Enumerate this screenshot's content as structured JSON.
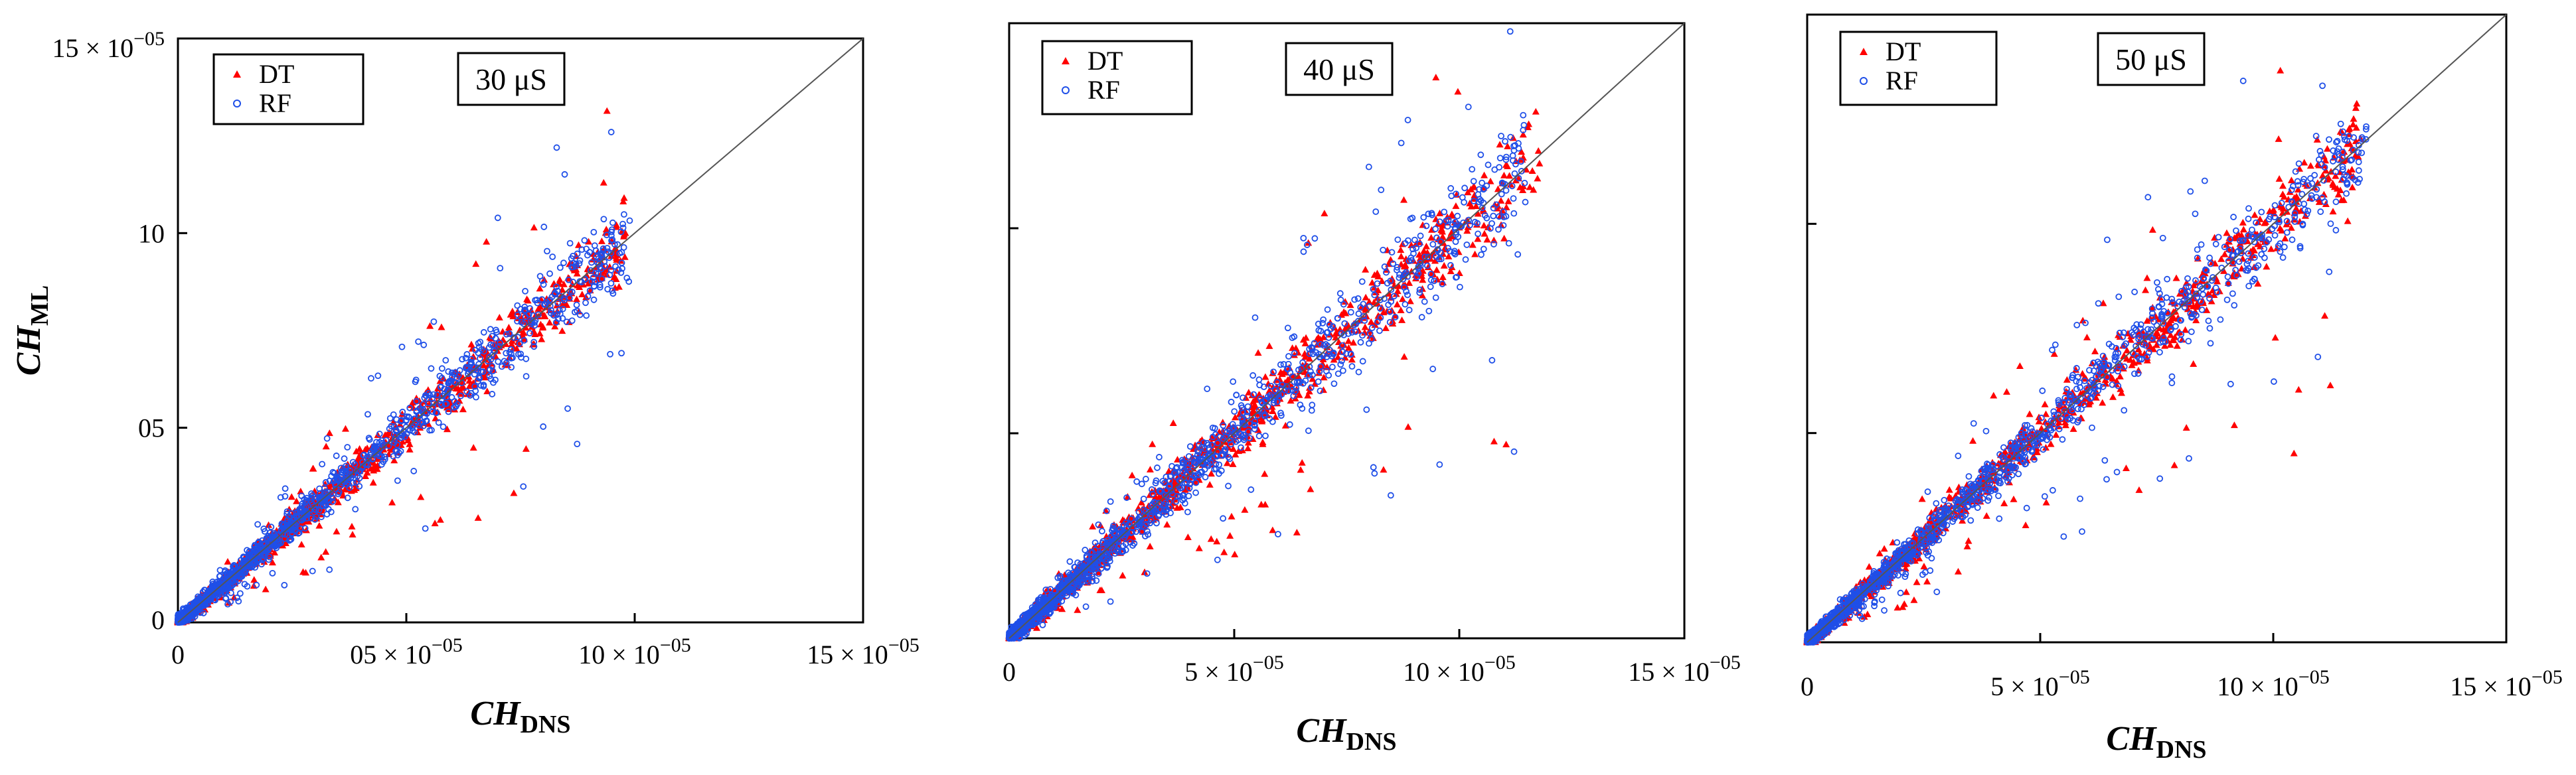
{
  "colors": {
    "DT": "#ff0000",
    "RF": "#1f4fe8",
    "axis": "#000000",
    "diagonal": "#555555"
  },
  "chart_data": [
    {
      "type": "scatter",
      "condition": "30 μS",
      "x_range": [
        0,
        15
      ],
      "y_range": [
        0,
        15
      ],
      "x_ticks": [
        {
          "v": 0,
          "label": "0"
        },
        {
          "v": 5,
          "label": "05 × 10",
          "exp": "−05"
        },
        {
          "v": 10,
          "label": "10 × 10",
          "exp": "−05"
        },
        {
          "v": 15,
          "label": "15 × 10",
          "exp": "−05"
        }
      ],
      "y_ticks": [
        {
          "v": 0,
          "label": "0"
        },
        {
          "v": 5,
          "label": "05"
        },
        {
          "v": 10,
          "label": "10"
        },
        {
          "v": 15,
          "label": "15 × 10",
          "exp": "−05"
        }
      ],
      "xlabel": {
        "main": "CH",
        "sub": "DNS"
      },
      "ylabel": {
        "main": "CH",
        "sub": "ML"
      },
      "legend": [
        "DT",
        "RF"
      ],
      "series": [
        {
          "name": "DT",
          "marker": "triangle",
          "n": 1300,
          "xmax": 9.8,
          "spread": 0.22
        },
        {
          "name": "RF",
          "marker": "circle",
          "n": 1300,
          "xmax": 9.9,
          "spread": 0.26
        }
      ],
      "diagonal": true
    },
    {
      "type": "scatter",
      "condition": "40 μS",
      "x_range": [
        0,
        15
      ],
      "y_range": [
        0,
        15
      ],
      "x_ticks": [
        {
          "v": 0,
          "label": "0"
        },
        {
          "v": 5,
          "label": "5 × 10",
          "exp": "−05"
        },
        {
          "v": 10,
          "label": "10 × 10",
          "exp": "−05"
        },
        {
          "v": 15,
          "label": "15 × 10",
          "exp": "−05"
        }
      ],
      "y_ticks": [
        {
          "v": 5
        },
        {
          "v": 10
        }
      ],
      "xlabel": {
        "main": "CH",
        "sub": "DNS"
      },
      "legend": [
        "DT",
        "RF"
      ],
      "series": [
        {
          "name": "DT",
          "marker": "triangle",
          "n": 1300,
          "xmax": 11.8,
          "spread": 0.25
        },
        {
          "name": "RF",
          "marker": "circle",
          "n": 1300,
          "xmax": 11.5,
          "spread": 0.3
        }
      ],
      "diagonal": true
    },
    {
      "type": "scatter",
      "condition": "50 μS",
      "x_range": [
        0,
        15
      ],
      "y_range": [
        0,
        15
      ],
      "x_ticks": [
        {
          "v": 0,
          "label": "0"
        },
        {
          "v": 5,
          "label": "5 × 10",
          "exp": "−05"
        },
        {
          "v": 10,
          "label": "10 × 10",
          "exp": "−05"
        },
        {
          "v": 15,
          "label": "15 × 10",
          "exp": "−05"
        }
      ],
      "y_ticks": [
        {
          "v": 5
        },
        {
          "v": 10
        }
      ],
      "xlabel": {
        "main": "CH",
        "sub": "DNS"
      },
      "legend": [
        "DT",
        "RF"
      ],
      "series": [
        {
          "name": "DT",
          "marker": "triangle",
          "n": 1300,
          "xmax": 11.9,
          "spread": 0.22
        },
        {
          "name": "RF",
          "marker": "circle",
          "n": 1300,
          "xmax": 12.0,
          "spread": 0.25
        }
      ],
      "diagonal": true
    }
  ]
}
